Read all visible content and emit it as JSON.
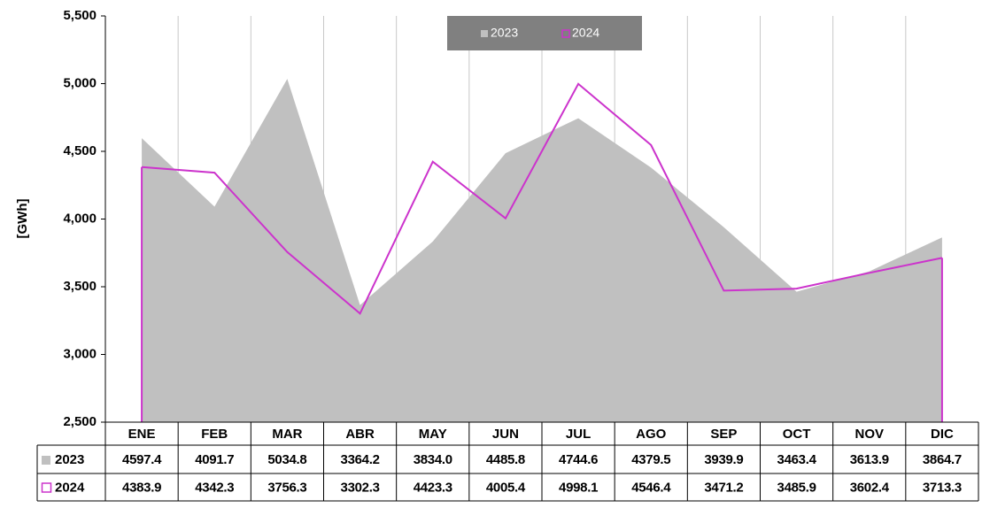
{
  "chart_data": {
    "type": "area",
    "y_axis_label": "[GWh]",
    "categories": [
      "ENE",
      "FEB",
      "MAR",
      "ABR",
      "MAY",
      "JUN",
      "JUL",
      "AGO",
      "SEP",
      "OCT",
      "NOV",
      "DIC"
    ],
    "series": [
      {
        "name": "2023",
        "color": "#c0c0c0",
        "style": "area",
        "values": [
          4597.4,
          4091.7,
          5034.8,
          3364.2,
          3834.0,
          4485.8,
          4744.6,
          4379.5,
          3939.9,
          3463.4,
          3613.9,
          3864.7
        ],
        "value_labels": [
          "4597.4",
          "4091.7",
          "5034.8",
          "3364.2",
          "3834.0",
          "4485.8",
          "4744.6",
          "4379.5",
          "3939.9",
          "3463.4",
          "3613.9",
          "3864.7"
        ]
      },
      {
        "name": "2024",
        "color": "#cc33cc",
        "style": "outline",
        "values": [
          4383.9,
          4342.3,
          3756.3,
          3302.3,
          4423.3,
          4005.4,
          4998.1,
          4546.4,
          3471.2,
          3485.9,
          3602.4,
          3713.3
        ],
        "value_labels": [
          "4383.9",
          "4342.3",
          "3756.3",
          "3302.3",
          "4423.3",
          "4005.4",
          "4998.1",
          "4546.4",
          "3471.2",
          "3485.9",
          "3602.4",
          "3713.3"
        ]
      }
    ],
    "ylim": [
      2500,
      5500
    ],
    "yticks": [
      {
        "value": 2500,
        "label": "2,500"
      },
      {
        "value": 3000,
        "label": "3,000"
      },
      {
        "value": 3500,
        "label": "3,500"
      },
      {
        "value": 4000,
        "label": "4,000"
      },
      {
        "value": 4500,
        "label": "4,500"
      },
      {
        "value": 5000,
        "label": "5,000"
      },
      {
        "value": 5500,
        "label": "5,500"
      }
    ],
    "grid": "vertical",
    "legend": "top"
  }
}
